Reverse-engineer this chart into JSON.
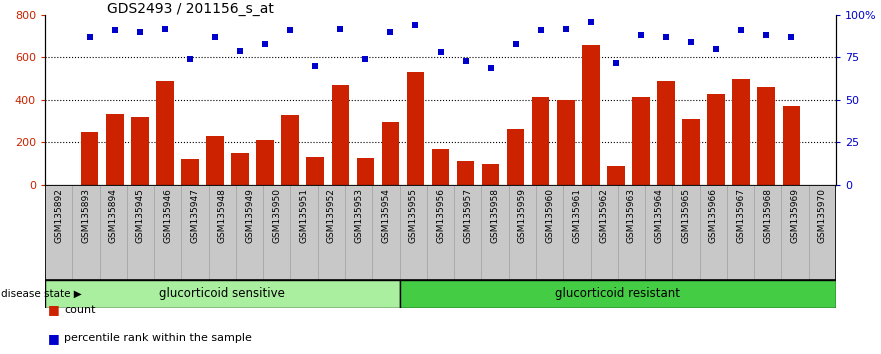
{
  "title": "GDS2493 / 201156_s_at",
  "samples": [
    "GSM135892",
    "GSM135893",
    "GSM135894",
    "GSM135945",
    "GSM135946",
    "GSM135947",
    "GSM135948",
    "GSM135949",
    "GSM135950",
    "GSM135951",
    "GSM135952",
    "GSM135953",
    "GSM135954",
    "GSM135955",
    "GSM135956",
    "GSM135957",
    "GSM135958",
    "GSM135959",
    "GSM135960",
    "GSM135961",
    "GSM135962",
    "GSM135963",
    "GSM135964",
    "GSM135965",
    "GSM135966",
    "GSM135967",
    "GSM135968",
    "GSM135969",
    "GSM135970"
  ],
  "counts": [
    248,
    335,
    320,
    490,
    120,
    230,
    150,
    210,
    330,
    130,
    470,
    125,
    295,
    530,
    170,
    115,
    100,
    265,
    415,
    400,
    660,
    90,
    415,
    490,
    310,
    430,
    500,
    460,
    370
  ],
  "percentile_ranks": [
    87,
    91,
    90,
    92,
    74,
    87,
    79,
    83,
    91,
    70,
    92,
    74,
    90,
    94,
    78,
    73,
    69,
    83,
    91,
    92,
    96,
    72,
    88,
    87,
    84,
    80,
    91,
    88,
    87
  ],
  "group1_label": "glucorticoid sensitive",
  "group2_label": "glucorticoid resistant",
  "group1_count": 13,
  "group2_count": 16,
  "bar_color": "#cc2200",
  "dot_color": "#0000cc",
  "group1_color": "#aaeea0",
  "group2_color": "#44cc44",
  "xtick_bg_color": "#c8c8c8",
  "xtick_border_color": "#888888",
  "ylim_left": [
    0,
    800
  ],
  "ylim_right": [
    0,
    100
  ],
  "yticks_left": [
    0,
    200,
    400,
    600,
    800
  ],
  "yticks_right": [
    0,
    25,
    50,
    75,
    100
  ],
  "legend_count_label": "count",
  "legend_pct_label": "percentile rank within the sample",
  "disease_state_label": "disease state"
}
